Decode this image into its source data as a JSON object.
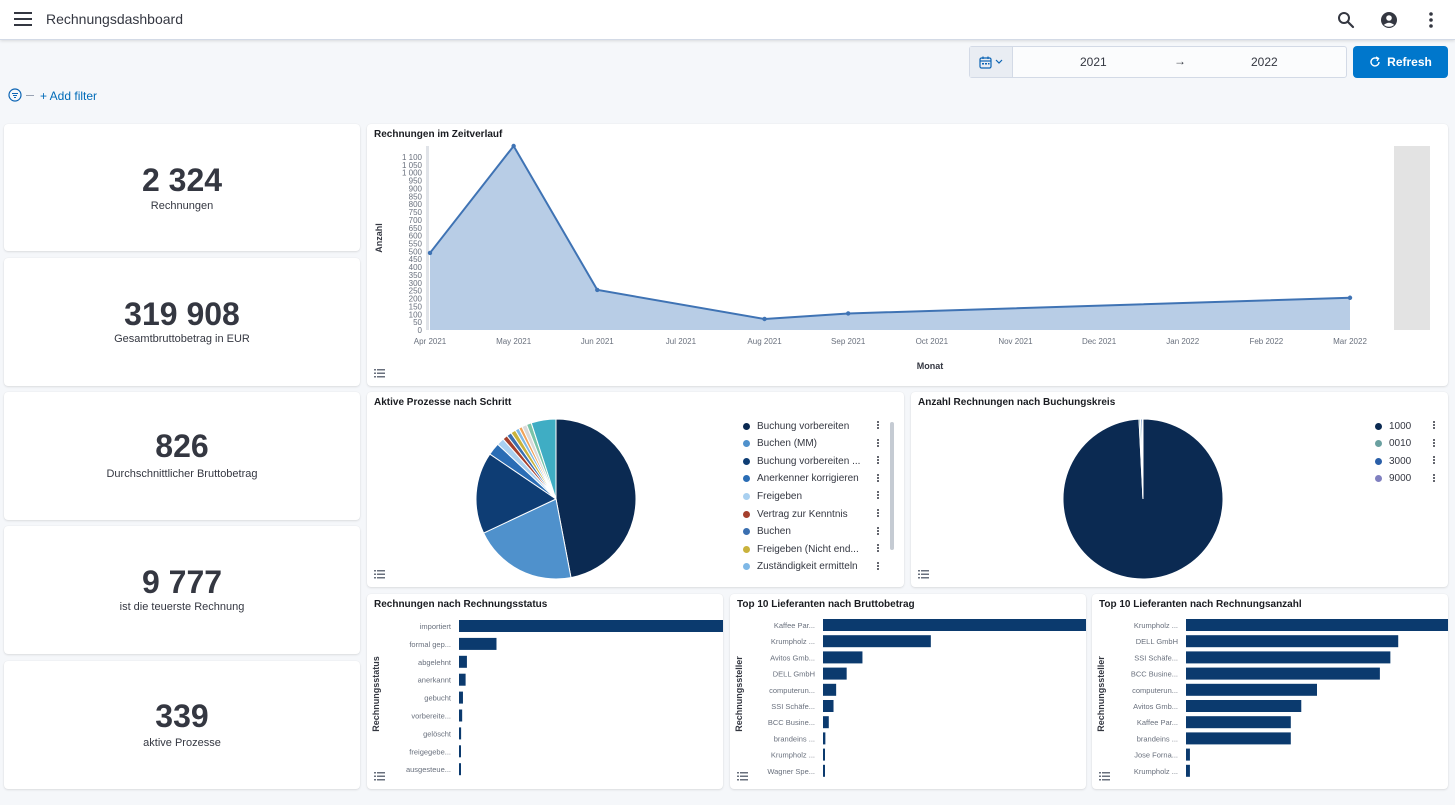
{
  "header": {
    "title": "Rechnungsdashboard"
  },
  "timepicker": {
    "start": "2021",
    "arrow": "→",
    "end": "2022",
    "refresh_label": "Refresh"
  },
  "filter": {
    "add_label": "+ Add filter"
  },
  "metrics": [
    {
      "value": "2 324",
      "label": "Rechnungen"
    },
    {
      "value": "319 908",
      "label": "Gesamtbruttobetrag in EUR"
    },
    {
      "value": "826",
      "label": "Durchschnittlicher Bruttobetrag"
    },
    {
      "value": "9 777",
      "label": "ist die teuerste Rechnung"
    },
    {
      "value": "339",
      "label": "aktive Prozesse"
    }
  ],
  "icons": {
    "menu": "hamburger-menu-icon",
    "search": "search-icon",
    "user": "user-avatar-icon",
    "more": "more-vertical-icon",
    "calendar": "calendar-icon",
    "refresh": "refresh-icon",
    "filter": "filter-icon",
    "legend": "legend-toggle-icon"
  },
  "colors": {
    "accent": "#0077cc",
    "navy": "#0b3a6e",
    "area_fill": "#b8cde6",
    "area_line": "#3f73b4"
  },
  "charts": {
    "timeline": {
      "title": "Rechnungen im Zeitverlauf",
      "xlabel": "Monat",
      "ylabel": "Anzahl",
      "chart_data": {
        "type": "area",
        "x": [
          "Apr 2021",
          "May 2021",
          "Jun 2021",
          "Jul 2021",
          "Aug 2021",
          "Sep 2021",
          "Oct 2021",
          "Nov 2021",
          "Dec 2021",
          "Jan 2022",
          "Feb 2022",
          "Mar 2022"
        ],
        "y_ticks": [
          "0",
          "50",
          "100",
          "150",
          "200",
          "250",
          "300",
          "350",
          "400",
          "450",
          "500",
          "550",
          "600",
          "650",
          "700",
          "750",
          "800",
          "850",
          "900",
          "950",
          "1 000",
          "1 050",
          "1 100"
        ],
        "points": [
          {
            "x": "Apr 2021",
            "y": 490
          },
          {
            "x": "May 2021",
            "y": 1170
          },
          {
            "x": "Jun 2021",
            "y": 255
          },
          {
            "x": "Aug 2021",
            "y": 70
          },
          {
            "x": "Sep 2021",
            "y": 105
          },
          {
            "x": "Mar 2022",
            "y": 205
          }
        ],
        "ylim": [
          0,
          1170
        ],
        "current_period_marker": "after Mar 2022"
      }
    },
    "process_pie": {
      "title": "Aktive Prozesse nach Schritt",
      "chart_data": {
        "type": "pie",
        "slices": [
          {
            "label": "Buchung vorbereiten",
            "value": 47.0,
            "color": "#0b2a52"
          },
          {
            "label": "Buchen (MM)",
            "value": 21.0,
            "color": "#4f91cc"
          },
          {
            "label": "Buchung vorbereiten ...",
            "value": 16.5,
            "color": "#0e3d74"
          },
          {
            "label": "Anerkenner korrigieren",
            "value": 2.5,
            "color": "#2a6db5"
          },
          {
            "label": "Freigeben",
            "value": 1.5,
            "color": "#a9d0f0"
          },
          {
            "label": "Vertrag zur Kenntnis",
            "value": 1.0,
            "color": "#a5402d"
          },
          {
            "label": "Buchen",
            "value": 1.0,
            "color": "#3a6fb0"
          },
          {
            "label": "Freigeben (Nicht end...",
            "value": 1.0,
            "color": "#c9b23c"
          },
          {
            "label": "Zuständigkeit ermitteln",
            "value": 0.8,
            "color": "#7fb8e6"
          },
          {
            "label": "",
            "value": 0.7,
            "color": "#f0a35a"
          },
          {
            "label": "",
            "value": 1.0,
            "color": "#d9d9d9"
          },
          {
            "label": "",
            "value": 1.0,
            "color": "#7ac4a8"
          },
          {
            "label": "",
            "value": 5.0,
            "color": "#3fadc4"
          }
        ]
      }
    },
    "company_pie": {
      "title": "Anzahl Rechnungen nach Buchungskreis",
      "chart_data": {
        "type": "pie",
        "slices": [
          {
            "label": "1000",
            "value": 99.2,
            "color": "#0b2a52"
          },
          {
            "label": "0010",
            "value": 0.3,
            "color": "#6aa0a0"
          },
          {
            "label": "3000",
            "value": 0.3,
            "color": "#2a5fa8"
          },
          {
            "label": "9000",
            "value": 0.2,
            "color": "#8080c0"
          }
        ]
      }
    },
    "status_bar": {
      "title": "Rechnungen nach Rechnungsstatus",
      "ylabel": "Rechnungsstatus",
      "chart_data": {
        "type": "bar",
        "orientation": "horizontal",
        "categories": [
          "importiert",
          "formal gep...",
          "abgelehnt",
          "anerkannt",
          "gebucht",
          "vorbereite...",
          "gelöscht",
          "freigegebe...",
          "ausgesteue..."
        ],
        "values": [
          1000,
          142,
          30,
          25,
          15,
          12,
          8,
          5,
          4
        ]
      }
    },
    "top_amount": {
      "title": "Top 10 Lieferanten nach Bruttobetrag",
      "ylabel": "Rechnungssteller",
      "chart_data": {
        "type": "bar",
        "orientation": "horizontal",
        "categories": [
          "Kaffee Par...",
          "Krumpholz ...",
          "Avitos Gmb...",
          "DELL GmbH",
          "computerun...",
          "SSI Schäfe...",
          "BCC Busine...",
          "brandeins ...",
          "Krumpholz ...",
          "Wagner Spe..."
        ],
        "values": [
          100,
          41,
          15,
          9,
          5,
          4,
          2.2,
          0.9,
          0.5,
          0.4
        ]
      }
    },
    "top_count": {
      "title": "Top 10 Lieferanten nach Rechnungsanzahl",
      "ylabel": "Rechnungssteller",
      "chart_data": {
        "type": "bar",
        "orientation": "horizontal",
        "categories": [
          "Krumpholz ...",
          "DELL GmbH",
          "SSI Schäfe...",
          "BCC Busine...",
          "computerun...",
          "Avitos Gmb...",
          "Kaffee Par...",
          "brandeins ...",
          "Jose Forna...",
          "Krumpholz ..."
        ],
        "values": [
          100,
          81,
          78,
          74,
          50,
          44,
          40,
          40,
          1.5,
          1.5
        ]
      }
    }
  }
}
